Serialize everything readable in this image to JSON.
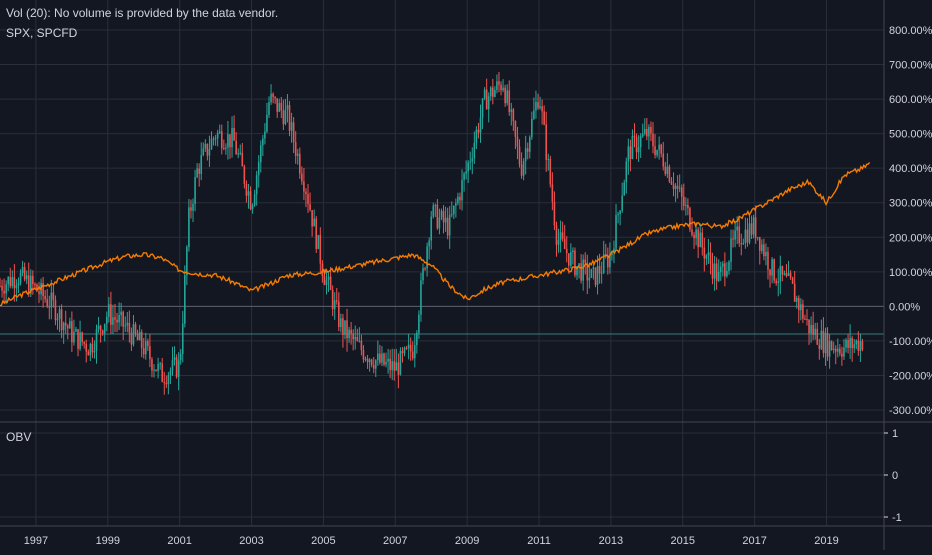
{
  "header": {
    "vol_label": "Vol (20): No volume is provided by the data vendor.",
    "symbol_label": "SPX, SPCFD"
  },
  "obv_label": "OBV",
  "colors": {
    "background": "#131722",
    "grid": "#2a2e39",
    "text": "#d1d4dc",
    "candle_up": "#26a69a",
    "candle_down": "#ef5350",
    "spx_line": "#f57c00",
    "zero_line": "#5d606b",
    "ref_line": "#3a7a7a"
  },
  "chart_data": [
    {
      "type": "line",
      "title": "",
      "xlabel": "",
      "ylabel": "",
      "y_scale": "percent",
      "ylim": [
        -330,
        830
      ],
      "xlim": [
        1996.0,
        2020.6
      ],
      "x_ticks": [
        "1997",
        "1999",
        "2001",
        "2003",
        "2005",
        "2007",
        "2009",
        "2011",
        "2013",
        "2015",
        "2017",
        "2019"
      ],
      "y_ticks": [
        "800.00%",
        "700.00%",
        "600.00%",
        "500.00%",
        "400.00%",
        "300.00%",
        "200.00%",
        "100.00%",
        "0.00%",
        "-100.00%",
        "-200.00%",
        "-300.00%"
      ],
      "grid": true,
      "series": [
        {
          "name": "SPX",
          "style": "line",
          "x": [
            1996.0,
            1996.5,
            1997.0,
            1997.5,
            1998.0,
            1998.5,
            1999.0,
            1999.5,
            2000.0,
            2000.5,
            2001.0,
            2001.5,
            2002.0,
            2002.5,
            2003.0,
            2003.5,
            2004.0,
            2004.5,
            2005.0,
            2005.5,
            2006.0,
            2006.5,
            2007.0,
            2007.5,
            2008.0,
            2008.5,
            2009.0,
            2009.5,
            2010.0,
            2010.5,
            2011.0,
            2011.5,
            2012.0,
            2012.5,
            2013.0,
            2013.5,
            2014.0,
            2014.5,
            2015.0,
            2015.5,
            2016.0,
            2016.5,
            2017.0,
            2017.5,
            2018.0,
            2018.5,
            2019.0,
            2019.5,
            2020.0,
            2020.2
          ],
          "values": [
            5,
            30,
            50,
            70,
            90,
            110,
            130,
            145,
            150,
            140,
            105,
            95,
            90,
            70,
            45,
            65,
            90,
            95,
            100,
            110,
            120,
            130,
            140,
            150,
            120,
            60,
            20,
            50,
            70,
            80,
            90,
            100,
            110,
            125,
            150,
            180,
            210,
            225,
            235,
            240,
            230,
            250,
            280,
            310,
            340,
            360,
            300,
            380,
            400,
            415
          ]
        },
        {
          "name": "SPCFD",
          "style": "candles",
          "x": [
            1996.0,
            1996.5,
            1997.0,
            1997.5,
            1998.0,
            1998.5,
            1999.0,
            1999.5,
            2000.0,
            2000.5,
            2001.0,
            2001.25,
            2001.5,
            2002.0,
            2002.5,
            2003.0,
            2003.5,
            2004.0,
            2004.5,
            2005.0,
            2005.5,
            2006.0,
            2006.5,
            2007.0,
            2007.5,
            2008.0,
            2008.5,
            2009.0,
            2009.5,
            2010.0,
            2010.5,
            2011.0,
            2011.5,
            2012.0,
            2012.5,
            2013.0,
            2013.5,
            2014.0,
            2014.5,
            2015.0,
            2015.5,
            2016.0,
            2016.5,
            2017.0,
            2017.5,
            2018.0,
            2018.5,
            2019.0,
            2019.5,
            2020.0
          ],
          "values": [
            60,
            90,
            50,
            0,
            -80,
            -120,
            -20,
            -60,
            -120,
            -200,
            -170,
            250,
            400,
            500,
            480,
            300,
            600,
            550,
            350,
            100,
            -60,
            -120,
            -160,
            -180,
            -120,
            270,
            230,
            400,
            600,
            650,
            400,
            620,
            200,
            120,
            80,
            150,
            450,
            500,
            420,
            300,
            180,
            80,
            200,
            230,
            100,
            60,
            -60,
            -110,
            -120,
            -100
          ]
        }
      ],
      "reference_lines": [
        0,
        -80
      ]
    },
    {
      "type": "line",
      "title": "",
      "xlabel": "",
      "ylabel": "",
      "ylim": [
        -1.2,
        1.2
      ],
      "y_ticks": [
        "1",
        "0",
        "-1"
      ],
      "grid": true,
      "series": []
    }
  ]
}
